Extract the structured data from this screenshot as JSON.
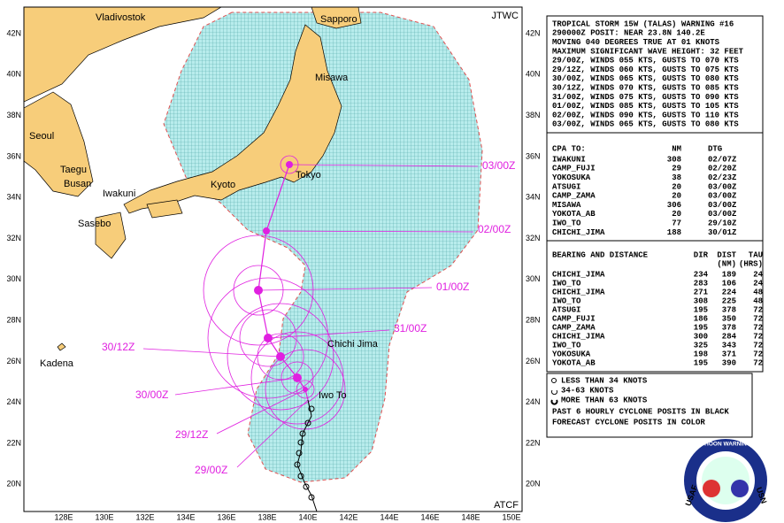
{
  "map": {
    "lat_labels": [
      "42N",
      "40N",
      "38N",
      "36N",
      "34N",
      "32N",
      "30N",
      "28N",
      "26N",
      "24N",
      "22N",
      "20N"
    ],
    "lon_labels": [
      "128E",
      "130E",
      "132E",
      "134E",
      "136E",
      "138E",
      "140E",
      "142E",
      "144E",
      "146E",
      "148E",
      "150E"
    ],
    "places": [
      "Vladivostok",
      "Sapporo",
      "Misawa",
      "Seoul",
      "Taegu",
      "Busan",
      "Iwakuni",
      "Kyoto",
      "Tokyo",
      "Sasebo",
      "Chichi Jima",
      "Iwo To",
      "Kadena"
    ],
    "corner_top": "JTWC",
    "corner_bottom": "ATCF",
    "forecast_labels": [
      "03/00Z",
      "02/00Z",
      "01/00Z",
      "31/00Z",
      "30/12Z",
      "30/00Z",
      "29/12Z",
      "29/00Z"
    ]
  },
  "warning": {
    "lines": [
      "TROPICAL STORM 15W (TALAS) WARNING #16",
      "290000Z POSIT: NEAR 23.8N 140.2E",
      "MOVING 040 DEGREES TRUE AT 01 KNOTS",
      "MAXIMUM SIGNIFICANT WAVE HEIGHT: 32 FEET",
      "29/00Z, WINDS 055 KTS, GUSTS TO 070 KTS",
      "29/12Z, WINDS 060 KTS, GUSTS TO 075 KTS",
      "30/00Z, WINDS 065 KTS, GUSTS TO 080 KTS",
      "30/12Z, WINDS 070 KTS, GUSTS TO 085 KTS",
      "31/00Z, WINDS 075 KTS, GUSTS TO 090 KTS",
      "01/00Z, WINDS 085 KTS, GUSTS TO 105 KTS",
      "02/00Z, WINDS 090 KTS, GUSTS TO 110 KTS",
      "03/00Z, WINDS 065 KTS, GUSTS TO 080 KTS"
    ]
  },
  "cpa": {
    "header": [
      "CPA TO:",
      "NM",
      "DTG"
    ],
    "rows": [
      [
        "IWAKUNI",
        308,
        "02/07Z"
      ],
      [
        "CAMP_FUJI",
        29,
        "02/20Z"
      ],
      [
        "YOKOSUKA",
        38,
        "02/23Z"
      ],
      [
        "ATSUGI",
        20,
        "03/00Z"
      ],
      [
        "CAMP_ZAMA",
        20,
        "03/00Z"
      ],
      [
        "MISAWA",
        306,
        "03/00Z"
      ],
      [
        "YOKOTA_AB",
        20,
        "03/00Z"
      ],
      [
        "IWO_TO",
        77,
        "29/10Z"
      ],
      [
        "CHICHI_JIMA",
        188,
        "30/01Z"
      ]
    ]
  },
  "bearing": {
    "header": [
      "BEARING AND DISTANCE",
      "DIR",
      "DIST",
      "TAU"
    ],
    "subheader": [
      "(NM)",
      "(HRS)"
    ],
    "rows": [
      [
        "CHICHI_JIMA",
        234,
        189,
        24
      ],
      [
        "IWO_TO",
        283,
        106,
        24
      ],
      [
        "CHICHI_JIMA",
        271,
        224,
        48
      ],
      [
        "IWO_TO",
        308,
        225,
        48
      ],
      [
        "ATSUGI",
        195,
        378,
        72
      ],
      [
        "CAMP_FUJI",
        186,
        350,
        72
      ],
      [
        "CAMP_ZAMA",
        195,
        378,
        72
      ],
      [
        "CHICHI_JIMA",
        300,
        284,
        72
      ],
      [
        "IWO_TO",
        325,
        343,
        72
      ],
      [
        "YOKOSUKA",
        198,
        371,
        72
      ],
      [
        "YOKOTA_AB",
        195,
        390,
        72
      ]
    ]
  },
  "legend": [
    "LESS THAN 34 KNOTS",
    "34-63 KNOTS",
    "MORE THAN 63 KNOTS",
    "PAST 6 HOURLY CYCLONE POSITS IN BLACK",
    "FORECAST CYCLONE POSITS IN COLOR"
  ],
  "logo": {
    "left": "USAF",
    "ring": "JOINT TYPHOON WARNING CENTER",
    "right": "USN"
  }
}
